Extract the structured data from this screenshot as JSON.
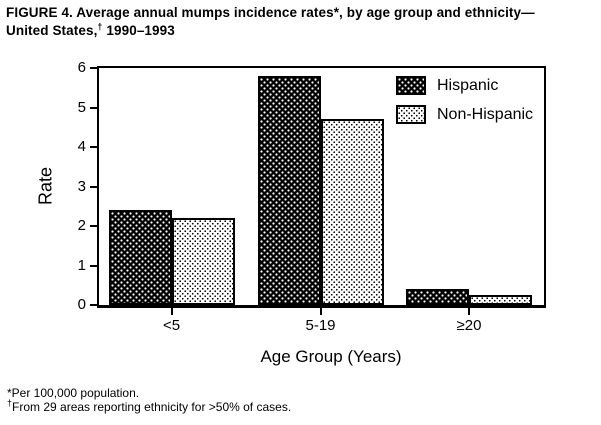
{
  "figure_title": {
    "line1": "FIGURE 4. Average annual mumps incidence rates*, by age group and ethnicity—",
    "line2_pre": "United States,",
    "line2_dagger": "†",
    "line2_post": " 1990–1993"
  },
  "chart_data": {
    "type": "bar",
    "categories": [
      "<5",
      "5-19",
      "≥20"
    ],
    "series": [
      {
        "name": "Hispanic",
        "values": [
          2.4,
          5.8,
          0.4
        ],
        "pattern": "white-dots-on-black",
        "color": "#000000"
      },
      {
        "name": "Non-Hispanic",
        "values": [
          2.2,
          4.7,
          0.25
        ],
        "pattern": "black-dots-on-white",
        "color": "#ffffff"
      }
    ],
    "xlabel": "Age Group (Years)",
    "ylabel": "Rate",
    "ylim": [
      0,
      6
    ],
    "yticks": [
      0,
      1,
      2,
      3,
      4,
      5,
      6
    ],
    "legend_position": "upper-right-inside",
    "grid": false
  },
  "footnotes": [
    {
      "marker": "*",
      "text": "Per 100,000 population."
    },
    {
      "marker": "†",
      "text": "From 29 areas reporting ethnicity for >50% of cases."
    }
  ]
}
